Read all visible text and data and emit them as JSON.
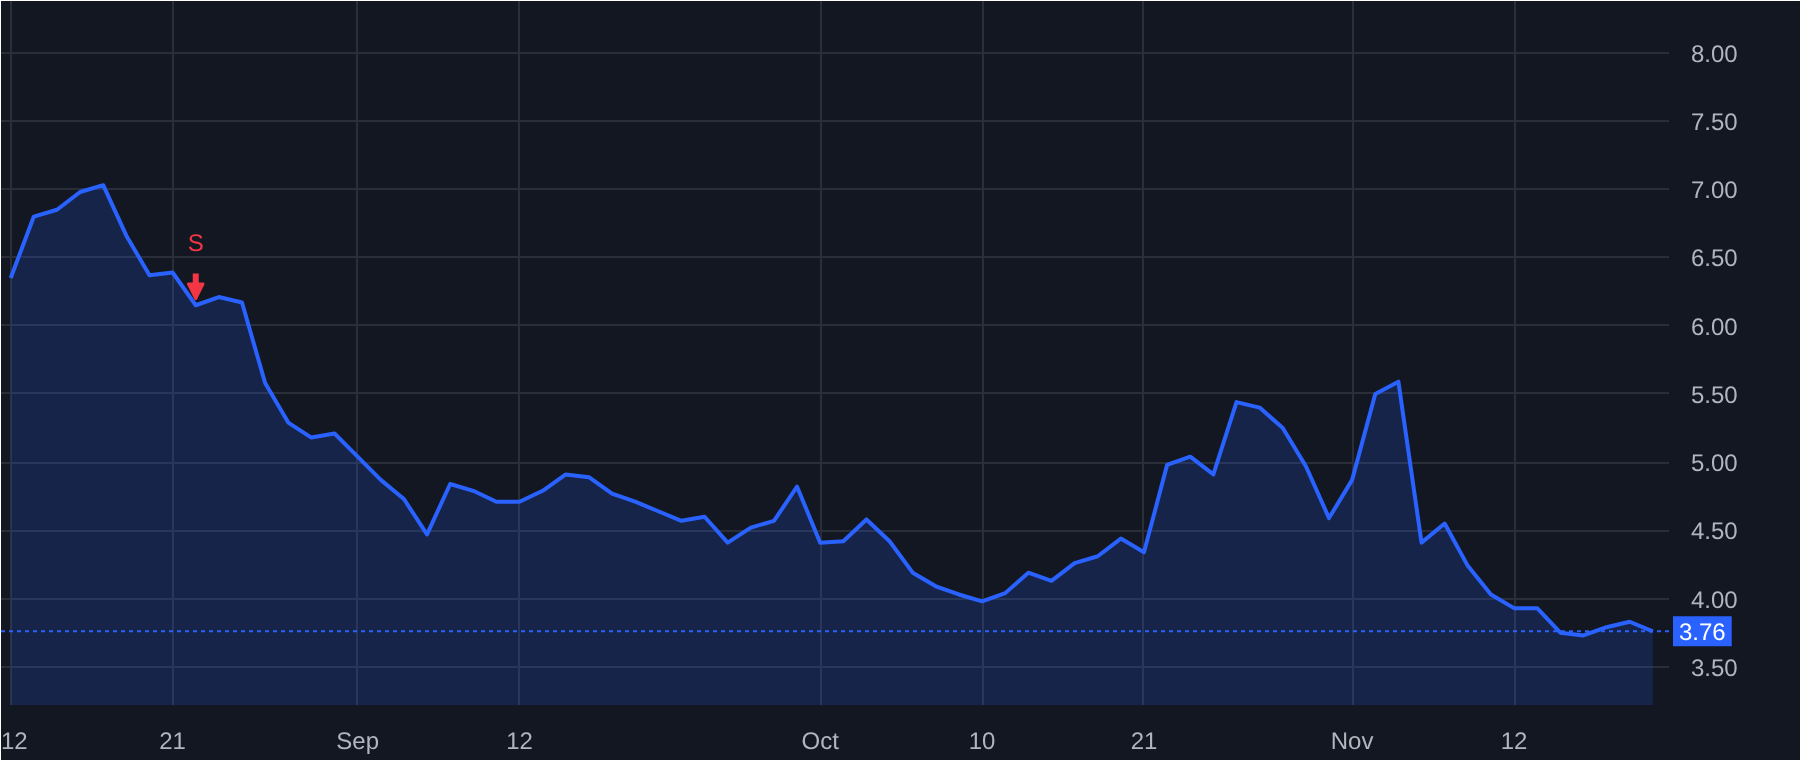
{
  "chart_data": {
    "type": "area",
    "categories": [
      "12",
      null,
      null,
      null,
      null,
      null,
      null,
      "21",
      null,
      null,
      null,
      null,
      null,
      null,
      null,
      "Sep",
      null,
      null,
      null,
      null,
      null,
      null,
      "12",
      null,
      null,
      null,
      null,
      null,
      null,
      null,
      null,
      null,
      null,
      null,
      null,
      "Oct",
      null,
      null,
      null,
      null,
      null,
      null,
      "10",
      null,
      null,
      null,
      null,
      null,
      null,
      "21",
      null,
      null,
      null,
      null,
      null,
      null,
      null,
      null,
      "Nov",
      null,
      null,
      null,
      null,
      null,
      null,
      "12",
      null,
      null,
      null,
      null,
      null,
      null
    ],
    "series": [
      {
        "color": "#2962ff",
        "values": [
          6.35,
          6.8,
          6.85,
          6.98,
          7.03,
          6.66,
          6.37,
          6.39,
          6.15,
          6.21,
          6.17,
          5.58,
          5.29,
          5.18,
          5.21,
          5.04,
          4.87,
          4.73,
          4.47,
          4.84,
          4.79,
          4.71,
          4.71,
          4.79,
          4.91,
          4.89,
          4.77,
          4.71,
          4.64,
          4.57,
          4.6,
          4.41,
          4.52,
          4.57,
          4.82,
          4.41,
          4.42,
          4.58,
          4.42,
          4.19,
          4.09,
          4.03,
          3.98,
          4.04,
          4.19,
          4.13,
          4.26,
          4.31,
          4.44,
          4.34,
          4.98,
          5.04,
          4.91,
          5.44,
          5.4,
          5.25,
          4.97,
          4.59,
          4.87,
          5.5,
          5.59,
          4.41,
          4.55,
          4.24,
          4.03,
          3.93,
          3.93,
          3.75,
          3.73,
          3.79,
          3.83,
          3.76
        ]
      }
    ],
    "ylim": [
      3.22,
      8.38
    ],
    "yticks": [
      {
        "value": 3.5,
        "label": "3.50"
      },
      {
        "value": 4,
        "label": "4.00"
      },
      {
        "value": 4.5,
        "label": "4.50"
      },
      {
        "value": 5,
        "label": "5.00"
      },
      {
        "value": 5.5,
        "label": "5.50"
      },
      {
        "value": 6,
        "label": "6.00"
      },
      {
        "value": 6.5,
        "label": "6.50"
      },
      {
        "value": 7,
        "label": "7.00"
      },
      {
        "value": 7.5,
        "label": "7.50"
      },
      {
        "value": 8,
        "label": "8.00"
      }
    ],
    "ref_lines": [
      {
        "axis": "y",
        "value": 3.76,
        "label": "3.76",
        "color": "#2962ff",
        "line_style": "dotted"
      }
    ],
    "annotations": [
      {
        "text": "S",
        "y": 6.15
      }
    ],
    "grid": true,
    "marker": "none"
  }
}
